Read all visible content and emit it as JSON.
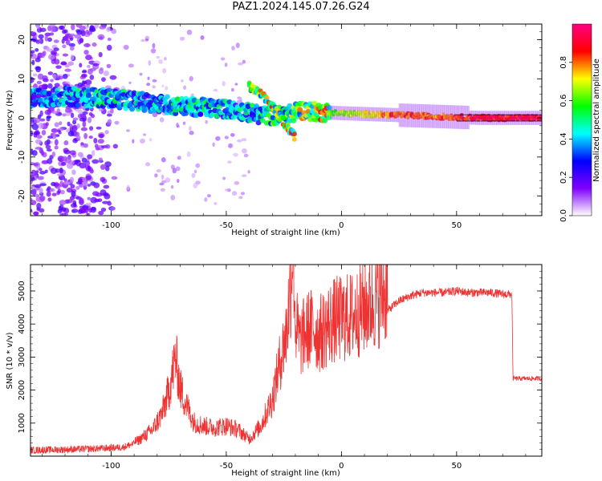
{
  "figure": {
    "title": "PAZ1.2024.145.07.26.G24"
  },
  "chart_data": [
    {
      "type": "heatmap",
      "xlabel": "Height of straight line (km)",
      "ylabel": "Frequency (Hz)",
      "xlim": [
        -135,
        87
      ],
      "ylim": [
        -25,
        24
      ],
      "xticks": [
        -100,
        -50,
        0,
        50
      ],
      "yticks": [
        -20,
        -10,
        0,
        10,
        20
      ],
      "colorbar": {
        "label": "Normalized spectral amplitude",
        "range": [
          0,
          1
        ],
        "ticks": [
          "0.0",
          "0.2",
          "0.4",
          "0.6",
          "0.8"
        ],
        "colormap": [
          "#ffffff",
          "#8000ff",
          "#0000ff",
          "#00ffff",
          "#00ff00",
          "#ffff00",
          "#ff0000",
          "#ff0080"
        ]
      },
      "ridge": {
        "x": [
          -135,
          -120,
          -100,
          -85,
          -70,
          -55,
          -45,
          -38,
          -30,
          -22,
          -18,
          -10,
          0,
          10,
          20,
          30,
          40,
          50,
          60,
          70,
          87
        ],
        "frequency": [
          5,
          5.5,
          5,
          4,
          3,
          2.5,
          2,
          1,
          0.5,
          1,
          2,
          1.5,
          1.2,
          1,
          0.8,
          0.6,
          0.4,
          0.2,
          0,
          0,
          0
        ],
        "amplitude": [
          0.3,
          0.35,
          0.4,
          0.35,
          0.4,
          0.4,
          0.35,
          0.4,
          0.45,
          0.5,
          0.55,
          0.6,
          0.7,
          0.75,
          0.85,
          0.9,
          0.85,
          0.9,
          0.95,
          0.95,
          0.95
        ]
      },
      "branch": {
        "x": [
          -40,
          -35,
          -30,
          -25,
          -20
        ],
        "frequency": [
          8,
          6,
          3,
          -1,
          -5
        ]
      },
      "noise_floor": {
        "x_range": [
          -135,
          -95
        ],
        "frequency_range": [
          -25,
          24
        ]
      }
    },
    {
      "type": "line",
      "xlabel": "Height of straight line (km)",
      "ylabel": "SNR (10 * v/v)",
      "xlim": [
        -135,
        87
      ],
      "ylim": [
        0,
        5800
      ],
      "xticks": [
        -100,
        -50,
        0,
        50
      ],
      "yticks": [
        1000,
        2000,
        3000,
        4000,
        5000
      ],
      "color": "#ee3333",
      "series": [
        {
          "x": [
            -135,
            -120,
            -105,
            -95,
            -88,
            -82,
            -78,
            -75,
            -72,
            -70,
            -67,
            -64,
            -60,
            -55,
            -50,
            -45,
            -40,
            -35,
            -30,
            -27,
            -24,
            -22,
            -21,
            -20,
            -18,
            -15,
            -12,
            -10,
            -8,
            -5,
            -2,
            0,
            5,
            10,
            15,
            20,
            25,
            30,
            35,
            40,
            45,
            50,
            55,
            60,
            65,
            70,
            74,
            74.5,
            80,
            87
          ],
          "y": [
            180,
            200,
            230,
            270,
            420,
            700,
            1100,
            1700,
            2600,
            1800,
            1300,
            900,
            800,
            750,
            800,
            700,
            450,
            800,
            1500,
            2400,
            3200,
            4500,
            5800,
            3500,
            3000,
            3300,
            3400,
            3200,
            3300,
            3500,
            3600,
            3600,
            3700,
            3900,
            4100,
            4400,
            4700,
            4850,
            4950,
            4950,
            4950,
            5000,
            4950,
            4950,
            4950,
            4900,
            4900,
            2350,
            2350,
            2350
          ]
        }
      ]
    }
  ]
}
